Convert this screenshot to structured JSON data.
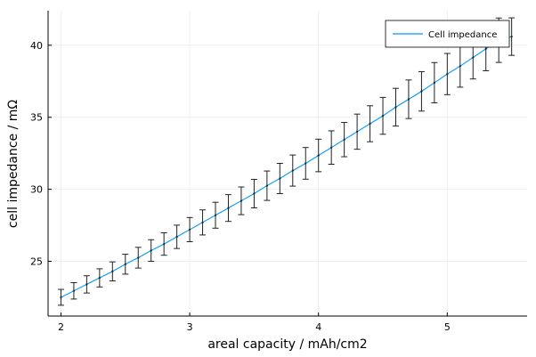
{
  "chart_data": {
    "type": "line",
    "title": "",
    "xlabel": "areal capacity / mAh/cm2",
    "ylabel": "cell impedance / mΩ",
    "xlim": [
      1.9,
      5.62
    ],
    "ylim": [
      21.2,
      42.4
    ],
    "xticks": [
      2,
      3,
      4,
      5
    ],
    "yticks": [
      25,
      30,
      35,
      40
    ],
    "grid": true,
    "legend_position": "top-right",
    "series": [
      {
        "name": "Cell impedance",
        "color": "#009AFA",
        "x": [
          2.0,
          2.1,
          2.2,
          2.3,
          2.4,
          2.5,
          2.6,
          2.7,
          2.8,
          2.9,
          3.0,
          3.1,
          3.2,
          3.3,
          3.4,
          3.5,
          3.6,
          3.7,
          3.8,
          3.9,
          4.0,
          4.1,
          4.2,
          4.3,
          4.4,
          4.5,
          4.6,
          4.7,
          4.8,
          4.9,
          5.0,
          5.1,
          5.2,
          5.3,
          5.4,
          5.5
        ],
        "y": [
          22.5,
          22.95,
          23.4,
          23.85,
          24.3,
          24.8,
          25.25,
          25.75,
          26.2,
          26.7,
          27.2,
          27.7,
          28.2,
          28.7,
          29.2,
          29.7,
          30.25,
          30.75,
          31.3,
          31.8,
          32.35,
          32.9,
          33.45,
          34.0,
          34.55,
          35.1,
          35.7,
          36.25,
          36.8,
          37.4,
          38.0,
          38.55,
          39.15,
          39.75,
          40.35,
          40.6
        ],
        "error": [
          0.55,
          0.57,
          0.6,
          0.63,
          0.66,
          0.69,
          0.72,
          0.75,
          0.78,
          0.81,
          0.84,
          0.87,
          0.9,
          0.93,
          0.96,
          0.99,
          1.02,
          1.05,
          1.08,
          1.1,
          1.13,
          1.16,
          1.19,
          1.22,
          1.25,
          1.28,
          1.31,
          1.34,
          1.37,
          1.4,
          1.43,
          1.46,
          1.49,
          1.52,
          1.54,
          1.3
        ],
        "error_color": "#222222"
      }
    ]
  }
}
